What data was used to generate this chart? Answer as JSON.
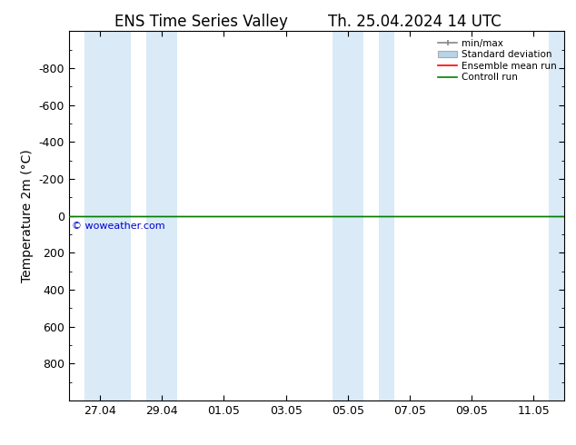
{
  "title_left": "ENS Time Series Valley",
  "title_right": "Th. 25.04.2024 14 UTC",
  "ylabel": "Temperature 2m (°C)",
  "ylim_bottom": 1000,
  "ylim_top": -1000,
  "ytick_major": [
    -800,
    -600,
    -400,
    -200,
    0,
    200,
    400,
    600,
    800
  ],
  "ytick_minor_step": 100,
  "xtick_labels": [
    "27.04",
    "29.04",
    "01.05",
    "03.05",
    "05.05",
    "07.05",
    "09.05",
    "11.05"
  ],
  "xtick_positions": [
    1,
    3,
    5,
    7,
    9,
    11,
    13,
    15
  ],
  "x_min": 0,
  "x_max": 16,
  "shaded_bands": [
    {
      "x_start": 0.5,
      "x_end": 2.0
    },
    {
      "x_start": 2.5,
      "x_end": 3.5
    },
    {
      "x_start": 8.5,
      "x_end": 9.5
    },
    {
      "x_start": 10.0,
      "x_end": 10.5
    },
    {
      "x_start": 15.5,
      "x_end": 16.0
    }
  ],
  "shaded_color": "#daeaf7",
  "horizontal_line_color_red": "#ff0000",
  "horizontal_line_color_green": "#008000",
  "watermark": "© woweather.com",
  "watermark_color": "#0000cc",
  "background_color": "#ffffff",
  "legend_labels": [
    "min/max",
    "Standard deviation",
    "Ensemble mean run",
    "Controll run"
  ],
  "legend_minmax_color": "#888888",
  "legend_std_color": "#b8d4e8",
  "legend_mean_color": "#ff0000",
  "legend_control_color": "#008000",
  "title_fontsize": 12,
  "ylabel_fontsize": 10,
  "tick_fontsize": 9
}
